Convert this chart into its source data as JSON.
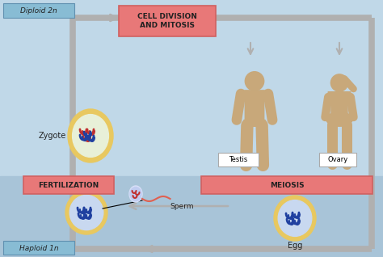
{
  "bg_color_top": "#c0d8e8",
  "bg_color_bottom": "#a8c4d8",
  "salmon_color": "#e87878",
  "salmon_border": "#d06060",
  "arrow_gray": "#b0b0b0",
  "human_color": "#c8a87a",
  "egg_outer": "#e8c860",
  "egg_inner_blue": "#c8d8f0",
  "egg_inner_light": "#e8f0d8",
  "white": "#ffffff",
  "label_box_bg": "#88bcd4",
  "label_box_border": "#6090b0",
  "title_diploid": "Diploid 2n",
  "title_haploid": "Haploid 1n",
  "label_cell_division": "CELL DIVISION\nAND MITOSIS",
  "label_fertilization": "FERTILIZATION",
  "label_meiosis": "MEIOSIS",
  "label_zygote": "Zygote",
  "label_testis": "Testis",
  "label_ovary": "Ovary",
  "label_sperm": "Sperm",
  "label_egg": "Egg",
  "chrom_red": "#c03030",
  "chrom_blue": "#2040a0",
  "figsize": [
    4.74,
    3.18
  ],
  "dpi": 100
}
